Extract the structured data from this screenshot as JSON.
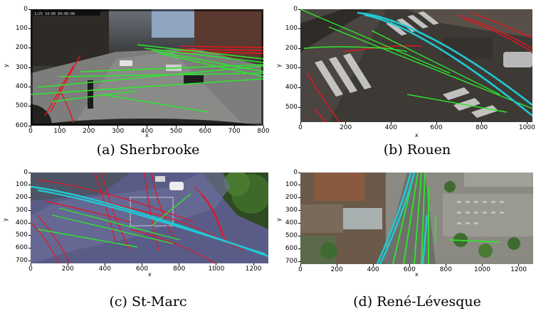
{
  "colors": {
    "red_track": "#e8141e",
    "green_track": "#2ee62e",
    "cyan_track": "#22c8d2"
  },
  "panels": [
    {
      "caption": "(a) Sherbrooke",
      "xlabel": "x",
      "ylabel": "y",
      "xticks": [
        "0",
        "100",
        "200",
        "300",
        "400",
        "500",
        "600",
        "700",
        "800"
      ],
      "yticks": [
        "0",
        "100",
        "200",
        "300",
        "400",
        "500",
        "600"
      ],
      "xlim": [
        0,
        800
      ],
      "ylim": [
        600,
        0
      ],
      "overlay_text": "1/25 14:00 09:00:00"
    },
    {
      "caption": "(b) Rouen",
      "xlabel": "x",
      "ylabel": "y",
      "xticks": [
        "0",
        "200",
        "400",
        "600",
        "800",
        "1000"
      ],
      "yticks": [
        "0",
        "100",
        "200",
        "300",
        "400",
        "500"
      ],
      "xlim": [
        0,
        1024
      ],
      "ylim": [
        576,
        0
      ]
    },
    {
      "caption": "(c) St-Marc",
      "xlabel": "x",
      "ylabel": "y",
      "xticks": [
        "0",
        "200",
        "400",
        "600",
        "800",
        "1000",
        "1200"
      ],
      "yticks": [
        "0",
        "100",
        "200",
        "300",
        "400",
        "500",
        "600",
        "700"
      ],
      "xlim": [
        0,
        1280
      ],
      "ylim": [
        720,
        0
      ]
    },
    {
      "caption": "(d) René-Lévesque",
      "xlabel": "x",
      "ylabel": "y",
      "xticks": [
        "0",
        "200",
        "400",
        "600",
        "800",
        "1000",
        "1200"
      ],
      "yticks": [
        "0",
        "100",
        "200",
        "300",
        "400",
        "500",
        "600",
        "700"
      ],
      "xlim": [
        0,
        1280
      ],
      "ylim": [
        720,
        0
      ]
    }
  ]
}
